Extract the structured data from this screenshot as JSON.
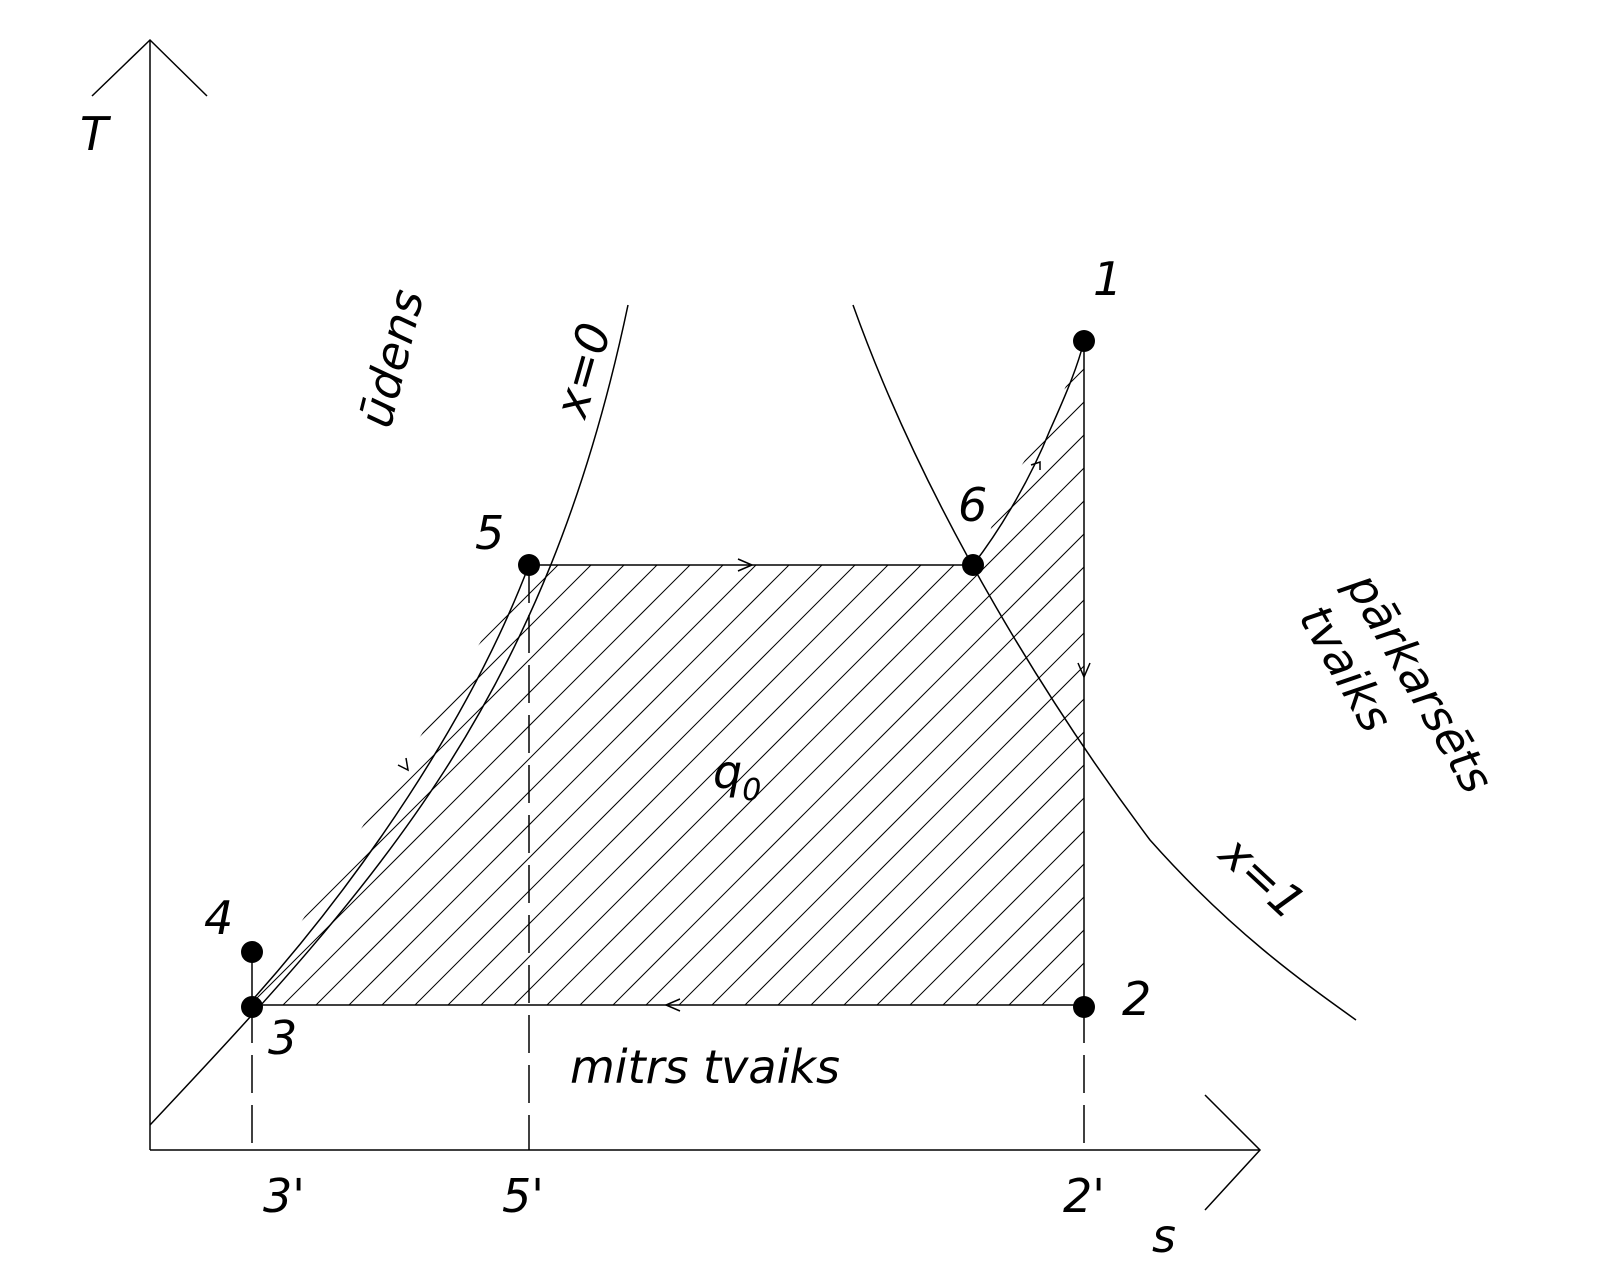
{
  "axes": {
    "y_label": "T",
    "x_label": "s"
  },
  "points": [
    {
      "id": "1",
      "label": "1"
    },
    {
      "id": "2",
      "label": "2"
    },
    {
      "id": "3",
      "label": "3"
    },
    {
      "id": "4",
      "label": "4"
    },
    {
      "id": "5",
      "label": "5"
    },
    {
      "id": "6",
      "label": "6"
    }
  ],
  "ticks": {
    "t3": "3'",
    "t5": "5'",
    "t2": "2'"
  },
  "regions": {
    "water": "ūdens",
    "superheated_line1": "pārkarsēts",
    "superheated_line2": "tvaiks",
    "wet_steam": "mitrs tvaiks"
  },
  "curves": {
    "x0": "x=0",
    "x1": "x=1"
  },
  "heat": {
    "q": "q",
    "sub": "0"
  }
}
